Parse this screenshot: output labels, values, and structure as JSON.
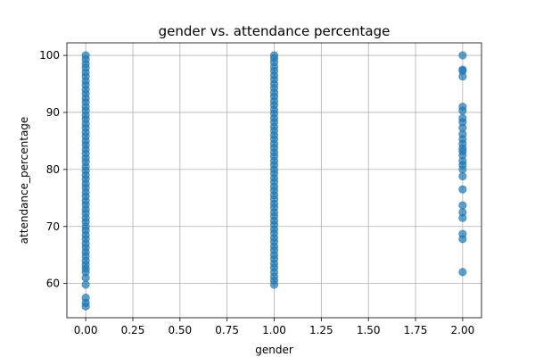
{
  "chart_data": {
    "type": "scatter",
    "title": "gender vs. attendance percentage",
    "xlabel": "gender",
    "ylabel": "attendance_percentage",
    "xlim": [
      -0.1,
      2.1
    ],
    "ylim": [
      54.0,
      102.2
    ],
    "xticks": [
      0.0,
      0.25,
      0.5,
      0.75,
      1.0,
      1.25,
      1.5,
      1.75,
      2.0
    ],
    "xtick_labels": [
      "0.00",
      "0.25",
      "0.50",
      "0.75",
      "1.00",
      "1.25",
      "1.50",
      "1.75",
      "2.00"
    ],
    "yticks": [
      60,
      70,
      80,
      90,
      100
    ],
    "ytick_labels": [
      "60",
      "70",
      "80",
      "90",
      "100"
    ],
    "grid": true,
    "marker_color": "#1f77b4",
    "marker_alpha": 0.7,
    "series": [
      {
        "x": 0,
        "y": [
          56.0,
          56.6,
          57.5,
          59.8,
          61.0,
          62.0,
          62.6,
          63.3,
          64.0,
          64.8,
          65.5,
          66.3,
          67.0,
          67.8,
          68.5,
          69.3,
          70.0,
          70.8,
          71.5,
          72.3,
          73.0,
          73.8,
          74.5,
          75.3,
          76.0,
          76.8,
          77.5,
          78.3,
          79.0,
          79.8,
          80.5,
          81.3,
          82.0,
          82.8,
          83.5,
          84.3,
          85.0,
          85.8,
          86.5,
          87.3,
          88.0,
          88.8,
          89.5,
          90.3,
          91.0,
          91.8,
          92.5,
          93.3,
          94.0,
          94.8,
          95.5,
          96.3,
          97.0,
          97.8,
          98.5,
          99.3,
          100.0
        ]
      },
      {
        "x": 1,
        "y": [
          59.8,
          60.5,
          61.2,
          62.0,
          62.8,
          63.5,
          64.3,
          65.0,
          65.8,
          66.5,
          67.3,
          68.0,
          68.8,
          69.5,
          70.3,
          71.0,
          71.8,
          72.5,
          73.3,
          74.0,
          74.8,
          75.5,
          76.3,
          77.0,
          77.8,
          78.5,
          79.3,
          80.0,
          80.8,
          81.5,
          82.3,
          83.0,
          83.8,
          84.5,
          85.3,
          86.0,
          86.8,
          87.5,
          88.3,
          89.0,
          89.8,
          90.5,
          91.3,
          92.0,
          92.8,
          93.5,
          94.3,
          95.0,
          95.8,
          96.5,
          97.3,
          98.0,
          98.8,
          99.5,
          100.0
        ]
      },
      {
        "x": 2,
        "y": [
          62.0,
          67.8,
          68.7,
          71.5,
          72.5,
          73.7,
          76.5,
          78.8,
          80.0,
          80.8,
          81.5,
          82.5,
          83.2,
          83.7,
          84.5,
          85.3,
          86.2,
          87.3,
          88.3,
          89.0,
          90.3,
          91.0,
          96.3,
          97.3,
          97.5,
          100.0
        ]
      }
    ]
  }
}
